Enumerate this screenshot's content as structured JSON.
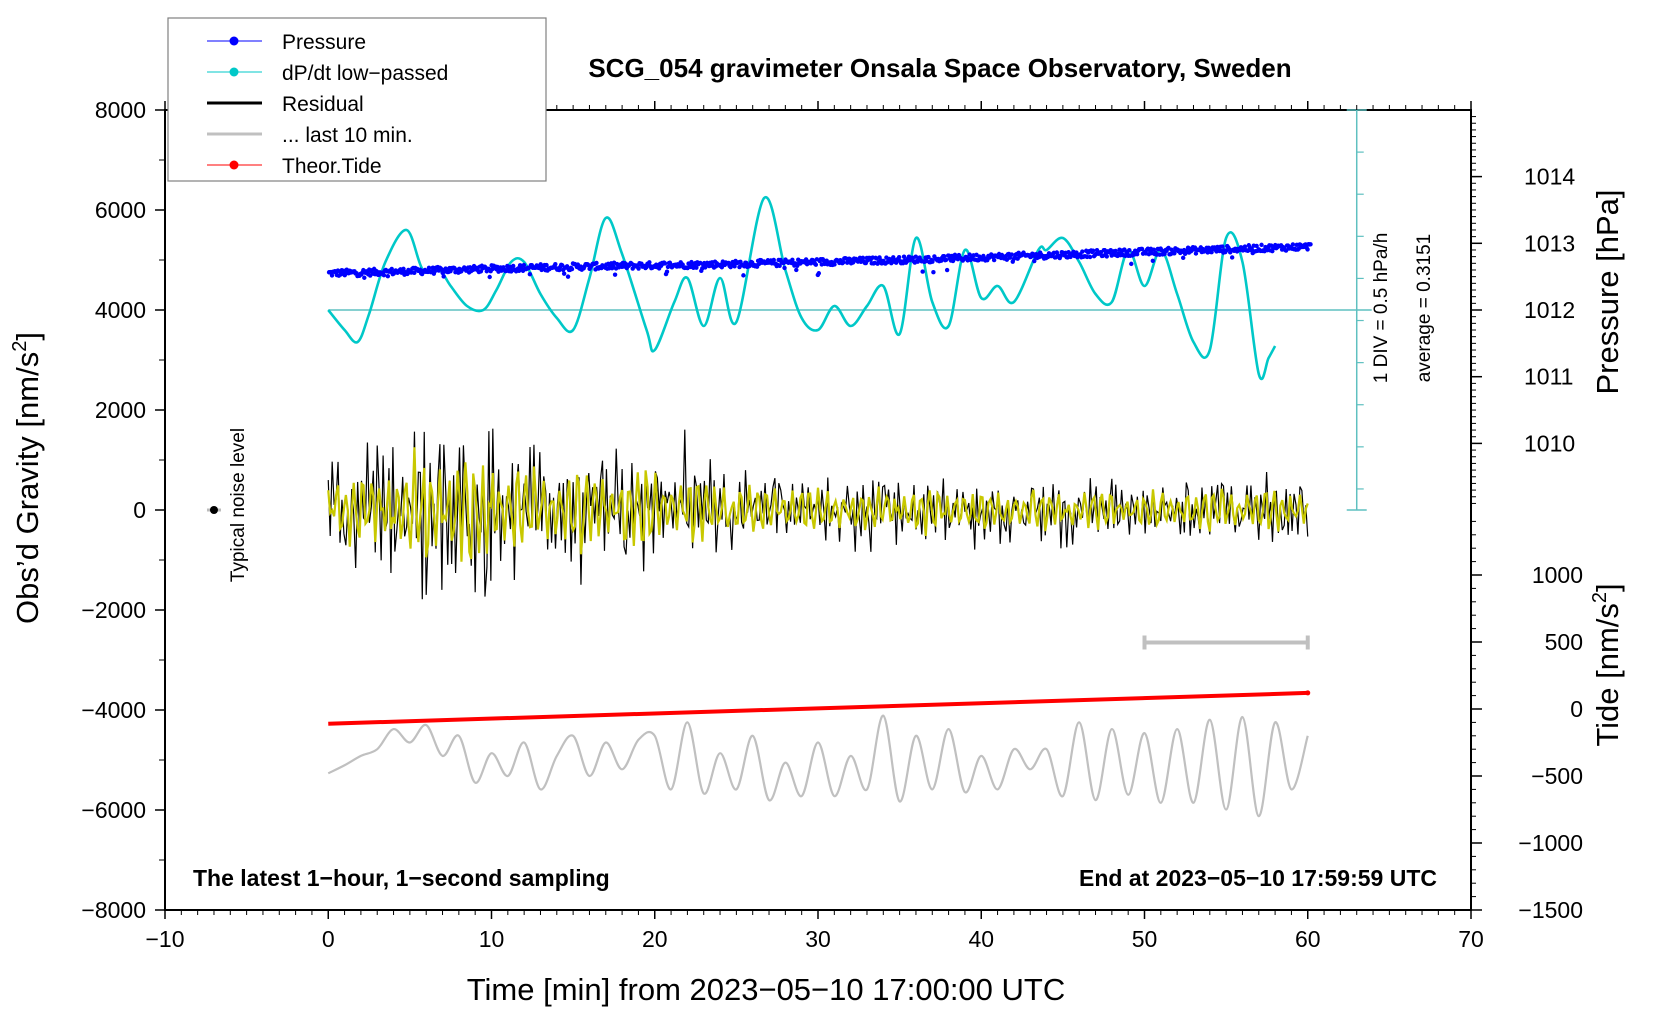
{
  "chart_data": {
    "type": "line",
    "title": "SCG_054 gravimeter Onsala Space Observatory, Sweden",
    "xlabel": "Time [min] from 2023−05−10 17:00:00 UTC",
    "ylabel_left": "Obs’d Gravity [nm/s²]",
    "ylabel_left_base": "Obs’d Gravity [nm/s",
    "ylabel_right_pressure_text": "Pressure [hPa]",
    "ylabel_right_tide_base": "Tide [nm/s",
    "superscript": "2",
    "ylabel_close": "]",
    "xlim": [
      -10,
      70
    ],
    "ylim_left": [
      -8000,
      8000
    ],
    "ylim_pressure": [
      1010,
      1014
    ],
    "ylim_tide": [
      -1500,
      1000
    ],
    "x_ticks": [
      -10,
      0,
      10,
      20,
      30,
      40,
      50,
      60,
      70
    ],
    "x_tick_labels": [
      "−10",
      "0",
      "10",
      "20",
      "30",
      "40",
      "50",
      "60",
      "70"
    ],
    "y_left_ticks": [
      8000,
      6000,
      4000,
      2000,
      0,
      -2000,
      -4000,
      -6000,
      -8000
    ],
    "y_left_tick_labels": [
      "8000",
      "6000",
      "4000",
      "2000",
      "0",
      "−2000",
      "−4000",
      "−6000",
      "−8000"
    ],
    "y_pressure_ticks": [
      1014,
      1013,
      1012,
      1011,
      1010
    ],
    "y_pressure_tick_labels": [
      "1014",
      "1013",
      "1012",
      "1011",
      "1010"
    ],
    "y_tide_ticks": [
      1000,
      500,
      0,
      -500,
      -1000,
      -1500
    ],
    "y_tide_tick_labels": [
      "1000",
      "500",
      "0",
      "−500",
      "−1000",
      "−1500"
    ],
    "grid": false,
    "legend_position": "top-left",
    "legend": [
      {
        "label": "Pressure",
        "color": "#0000ff",
        "marker": "dot"
      },
      {
        "label": "dP/dt low−passed",
        "color": "#00c8c8",
        "marker": "dot"
      },
      {
        "label": "Residual",
        "color": "#000000",
        "marker": "line"
      },
      {
        "label": "... last 10 min.",
        "color": "#c0c0c0",
        "marker": "line"
      },
      {
        "label": "Theor.Tide",
        "color": "#ff0000",
        "marker": "dot"
      }
    ],
    "annotations": {
      "bottom_left": "The latest 1−hour, 1−second sampling",
      "bottom_right": "End at 2023−05−10 17:59:59 UTC",
      "noise_label": "Typical noise level",
      "dpdt_scale": "1 DIV = 0.5 hPa/h",
      "dpdt_average": "average = 0.3151"
    },
    "series": [
      {
        "name": "Pressure",
        "axis": "pressure",
        "color": "#0000ff",
        "x": [
          0,
          5,
          10,
          15,
          20,
          25,
          30,
          35,
          40,
          45,
          50,
          55,
          60
        ],
        "values": [
          1012.55,
          1012.58,
          1012.62,
          1012.65,
          1012.67,
          1012.69,
          1012.72,
          1012.75,
          1012.79,
          1012.83,
          1012.87,
          1012.91,
          1012.95
        ]
      },
      {
        "name": "dP/dt low-passed",
        "axis": "pressure_offset",
        "color": "#00c8c8",
        "x": [
          0,
          1,
          1.8,
          2.5,
          3.5,
          4.8,
          5.8,
          6.8,
          7.5,
          8.5,
          9.5,
          10.3,
          11.2,
          12.0,
          13.0,
          14.0,
          15.0,
          16.0,
          17.0,
          18.0,
          19.5,
          20.0,
          21.2,
          22.0,
          23.0,
          24.0,
          25.0,
          26.7,
          28.0,
          29.0,
          30.0,
          31.0,
          32.0,
          33.0,
          34.0,
          35.0,
          36.0,
          37.0,
          38.0,
          39.0,
          40.0,
          41.0,
          42.0,
          43.5,
          44.0,
          45.0,
          46.0,
          47.0,
          48.0,
          49.0,
          50.0,
          51.0,
          52.0,
          53.0,
          54.0,
          55.0,
          56.0,
          57.0,
          57.6,
          58.0
        ],
        "values": [
          0.0,
          -0.5,
          -0.8,
          -0.1,
          1.2,
          2.0,
          1.0,
          1.0,
          0.6,
          0.1,
          0.0,
          0.5,
          1.2,
          1.2,
          0.4,
          -0.2,
          -0.5,
          0.8,
          2.3,
          1.4,
          -0.5,
          -1.0,
          0.2,
          0.8,
          -0.4,
          0.8,
          -0.3,
          2.8,
          1.0,
          -0.2,
          -0.5,
          0.1,
          -0.4,
          0.1,
          0.6,
          -0.6,
          1.8,
          0.2,
          -0.4,
          1.5,
          0.3,
          0.6,
          0.2,
          1.5,
          1.5,
          1.8,
          1.2,
          0.4,
          0.2,
          1.5,
          0.6,
          1.5,
          0.4,
          -0.8,
          -1.0,
          1.8,
          1.2,
          -1.6,
          -1.2,
          -0.9
        ]
      },
      {
        "name": "Residual",
        "axis": "left",
        "color": "#000000",
        "x_range": [
          0,
          60
        ],
        "amplitude_envelope": {
          "x": [
            0,
            3,
            8,
            13,
            20,
            25,
            30,
            40,
            50,
            55,
            60
          ],
          "values": [
            1100,
            1600,
            2300,
            1400,
            1700,
            1100,
            900,
            800,
            700,
            800,
            900
          ]
        }
      },
      {
        "name": "Residual low-passed",
        "axis": "left",
        "color": "#c8c800",
        "x_range": [
          0,
          60
        ]
      },
      {
        "name": "... last 10 min.",
        "axis": "tide",
        "color": "#c0c0c0",
        "x_range": [
          0,
          60
        ],
        "baseline": -400,
        "x": [
          0,
          1,
          2,
          3,
          4,
          5,
          6,
          7,
          8,
          9,
          10,
          11,
          12,
          13,
          14,
          15,
          16,
          17,
          18,
          19,
          20,
          21,
          22,
          23,
          24,
          25,
          26,
          27,
          28,
          29,
          30,
          31,
          32,
          33,
          34,
          35,
          36,
          37,
          38,
          39,
          40,
          41,
          42,
          43,
          44,
          45,
          46,
          47,
          48,
          49,
          50,
          51,
          52,
          53,
          54,
          55,
          56,
          57,
          58,
          59,
          60
        ],
        "values": [
          -480,
          -420,
          -350,
          -300,
          -150,
          -250,
          -120,
          -350,
          -200,
          -550,
          -330,
          -500,
          -250,
          -600,
          -350,
          -200,
          -500,
          -250,
          -450,
          -230,
          -200,
          -600,
          -100,
          -630,
          -330,
          -600,
          -200,
          -680,
          -400,
          -650,
          -250,
          -650,
          -350,
          -600,
          -50,
          -690,
          -200,
          -600,
          -150,
          -620,
          -350,
          -600,
          -300,
          -450,
          -300,
          -650,
          -100,
          -680,
          -150,
          -640,
          -180,
          -700,
          -150,
          -700,
          -80,
          -750,
          -60,
          -800,
          -100,
          -600,
          -200
        ]
      },
      {
        "name": "Theor.Tide",
        "axis": "tide",
        "color": "#ff0000",
        "x": [
          0,
          60
        ],
        "values": [
          -110,
          120
        ]
      }
    ],
    "last10_bar": {
      "x": [
        50,
        60
      ],
      "y": -2650,
      "color": "#c0c0c0"
    },
    "noise_marker": {
      "x": -7,
      "y": 0
    }
  }
}
